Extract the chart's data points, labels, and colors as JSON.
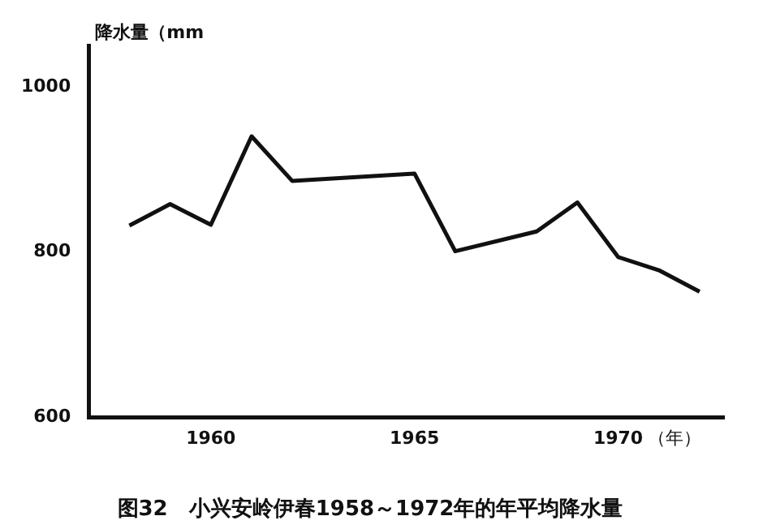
{
  "chart_data": {
    "type": "line",
    "title": "图32　小兴安岭伊春1958～1972年的年平均降水量",
    "ylabel": "降水量（mm",
    "xlabel": "（年）",
    "x": [
      1958,
      1959,
      1960,
      1961,
      1962,
      1965,
      1966,
      1968,
      1969,
      1970,
      1971,
      1972
    ],
    "series": [
      {
        "color": "#111111",
        "values": [
          832,
          858,
          833,
          940,
          886,
          895,
          801,
          825,
          860,
          794,
          778,
          752
        ]
      }
    ],
    "xlim": [
      1957,
      1972.6
    ],
    "xticks": [
      1960,
      1965,
      1970
    ],
    "ylim": [
      600,
      1050
    ],
    "yticks": [
      600,
      800,
      1000
    ],
    "grid": false,
    "legend": false,
    "marker": "none",
    "line_style": "solid"
  }
}
